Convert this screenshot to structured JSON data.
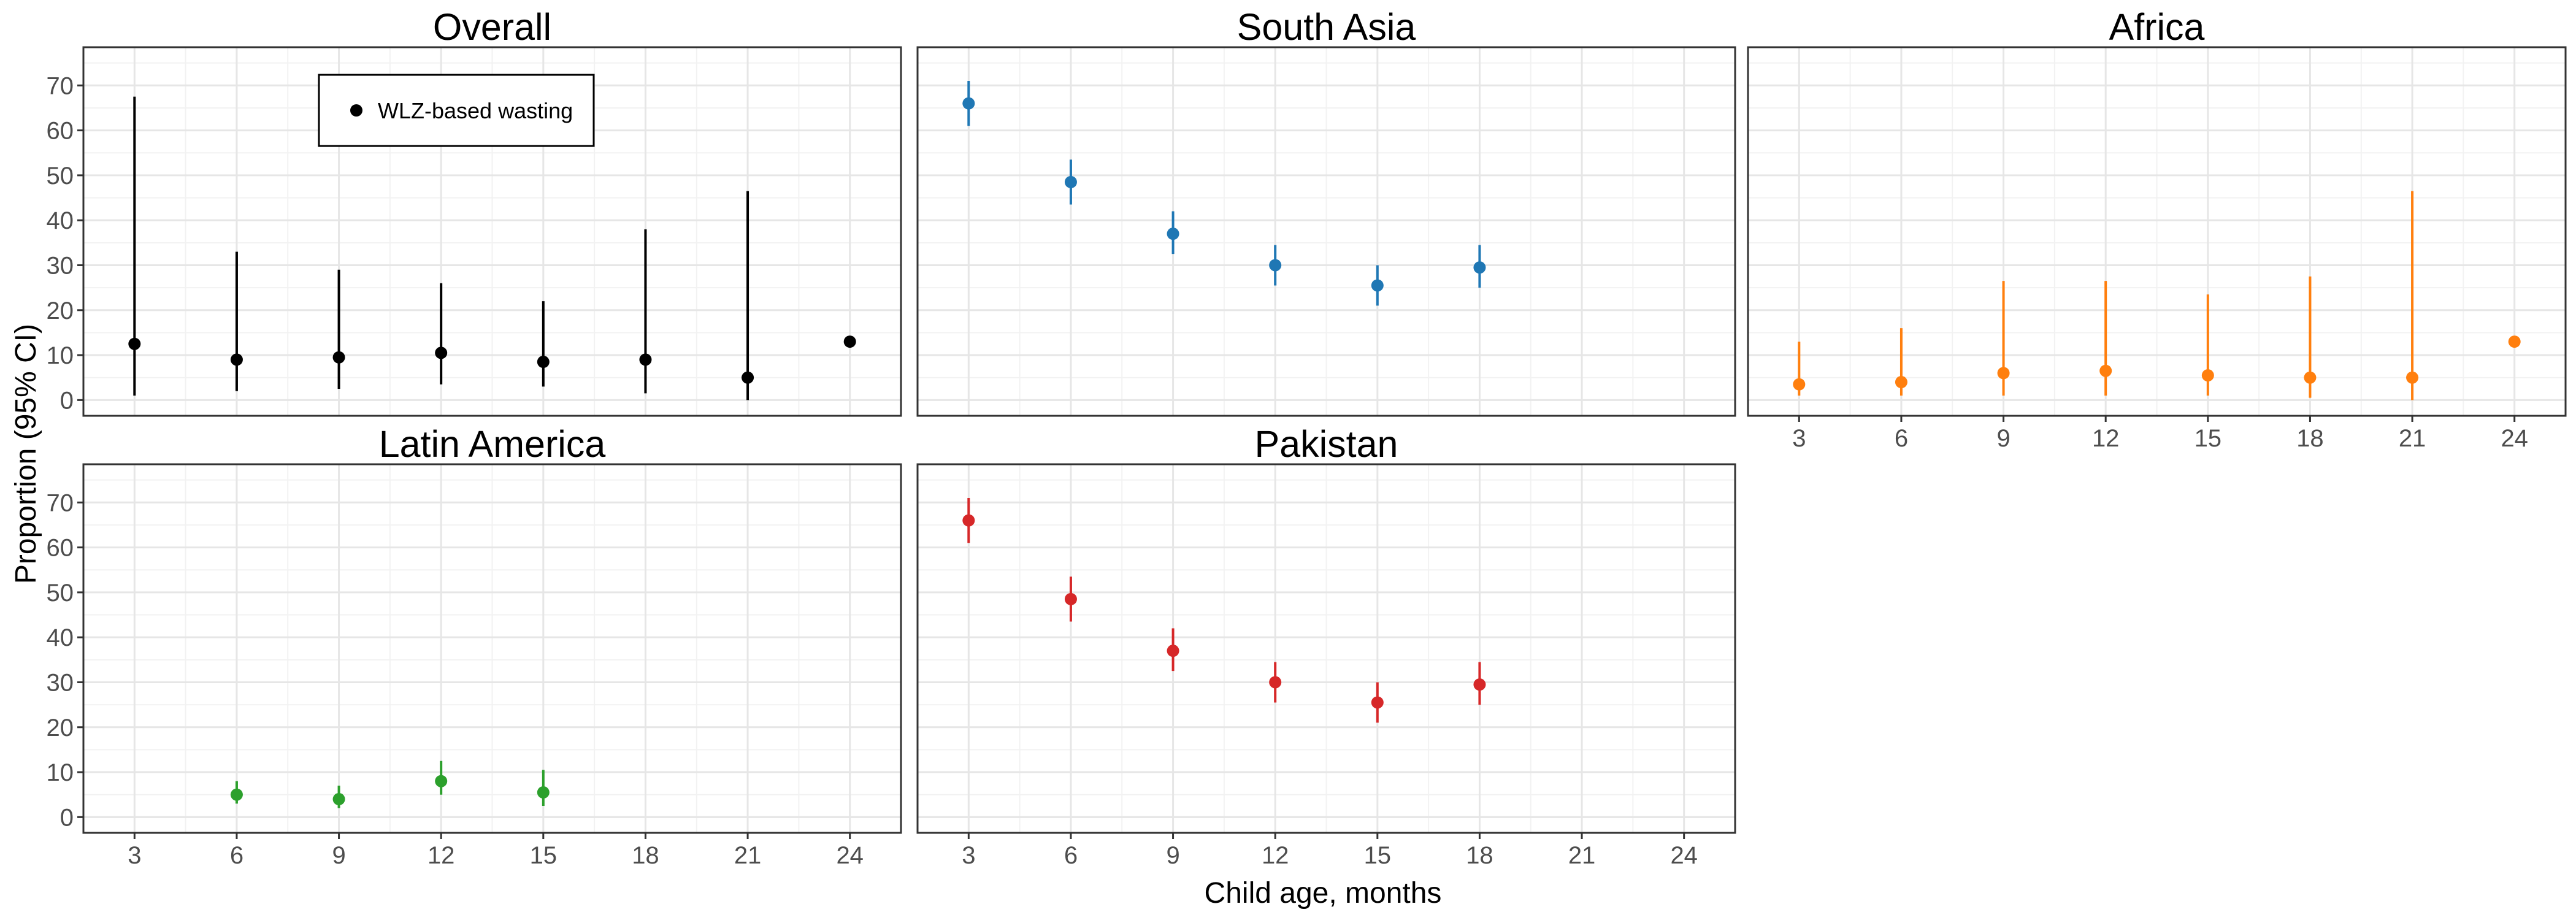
{
  "chart_data": {
    "type": "scatter",
    "subtype": "point-range faceted",
    "xlabel": "Child age, months",
    "ylabel": "Proportion (95% CI)",
    "x_ticks": [
      3,
      6,
      9,
      12,
      15,
      18,
      21,
      24
    ],
    "y_ticks": [
      0,
      10,
      20,
      30,
      40,
      50,
      60,
      70
    ],
    "xlim": [
      1.5,
      25.5
    ],
    "ylim": [
      -3.5,
      78.5
    ],
    "grid": true,
    "legend": {
      "position": "top-left inside Overall panel",
      "entries": [
        "WLZ-based wasting"
      ]
    },
    "panels": [
      {
        "title": "Overall",
        "color": "#000000",
        "show_x_ticks": false,
        "show_y_ticks": true,
        "points": [
          {
            "x": 3,
            "y": 12.5,
            "lo": 1,
            "hi": 67.5
          },
          {
            "x": 6,
            "y": 9,
            "lo": 2,
            "hi": 33
          },
          {
            "x": 9,
            "y": 9.5,
            "lo": 2.5,
            "hi": 29
          },
          {
            "x": 12,
            "y": 10.5,
            "lo": 3.5,
            "hi": 26
          },
          {
            "x": 15,
            "y": 8.5,
            "lo": 3,
            "hi": 22
          },
          {
            "x": 18,
            "y": 9,
            "lo": 1.5,
            "hi": 38
          },
          {
            "x": 21,
            "y": 5,
            "lo": 0,
            "hi": 46.5
          },
          {
            "x": 24,
            "y": 13,
            "lo": 12,
            "hi": 13.5
          }
        ]
      },
      {
        "title": "South Asia",
        "color": "#1f77b4",
        "show_x_ticks": false,
        "show_y_ticks": false,
        "points": [
          {
            "x": 3,
            "y": 66,
            "lo": 61,
            "hi": 71
          },
          {
            "x": 6,
            "y": 48.5,
            "lo": 43.5,
            "hi": 53.5
          },
          {
            "x": 9,
            "y": 37,
            "lo": 32.5,
            "hi": 42
          },
          {
            "x": 12,
            "y": 30,
            "lo": 25.5,
            "hi": 34.5
          },
          {
            "x": 15,
            "y": 25.5,
            "lo": 21,
            "hi": 30
          },
          {
            "x": 18,
            "y": 29.5,
            "lo": 25,
            "hi": 34.5
          }
        ]
      },
      {
        "title": "Africa",
        "color": "#ff7f0e",
        "show_x_ticks": true,
        "show_y_ticks": false,
        "points": [
          {
            "x": 3,
            "y": 3.5,
            "lo": 1,
            "hi": 13
          },
          {
            "x": 6,
            "y": 4,
            "lo": 1,
            "hi": 16
          },
          {
            "x": 9,
            "y": 6,
            "lo": 1,
            "hi": 26.5
          },
          {
            "x": 12,
            "y": 6.5,
            "lo": 1,
            "hi": 26.5
          },
          {
            "x": 15,
            "y": 5.5,
            "lo": 1,
            "hi": 23.5
          },
          {
            "x": 18,
            "y": 5,
            "lo": 0.5,
            "hi": 27.5
          },
          {
            "x": 21,
            "y": 5,
            "lo": 0,
            "hi": 46.5
          },
          {
            "x": 24,
            "y": 13,
            "lo": 12,
            "hi": 13.5
          }
        ]
      },
      {
        "title": "Latin America",
        "color": "#2ca02c",
        "show_x_ticks": true,
        "show_y_ticks": true,
        "points": [
          {
            "x": 6,
            "y": 5,
            "lo": 3,
            "hi": 8
          },
          {
            "x": 9,
            "y": 4,
            "lo": 2,
            "hi": 7
          },
          {
            "x": 12,
            "y": 8,
            "lo": 5,
            "hi": 12.5
          },
          {
            "x": 15,
            "y": 5.5,
            "lo": 2.5,
            "hi": 10.5
          }
        ]
      },
      {
        "title": "Pakistan",
        "color": "#d62728",
        "show_x_ticks": true,
        "show_y_ticks": false,
        "points": [
          {
            "x": 3,
            "y": 66,
            "lo": 61,
            "hi": 71
          },
          {
            "x": 6,
            "y": 48.5,
            "lo": 43.5,
            "hi": 53.5
          },
          {
            "x": 9,
            "y": 37,
            "lo": 32.5,
            "hi": 42
          },
          {
            "x": 12,
            "y": 30,
            "lo": 25.5,
            "hi": 34.5
          },
          {
            "x": 15,
            "y": 25.5,
            "lo": 21,
            "hi": 30
          },
          {
            "x": 18,
            "y": 29.5,
            "lo": 25,
            "hi": 34.5
          }
        ]
      }
    ]
  }
}
